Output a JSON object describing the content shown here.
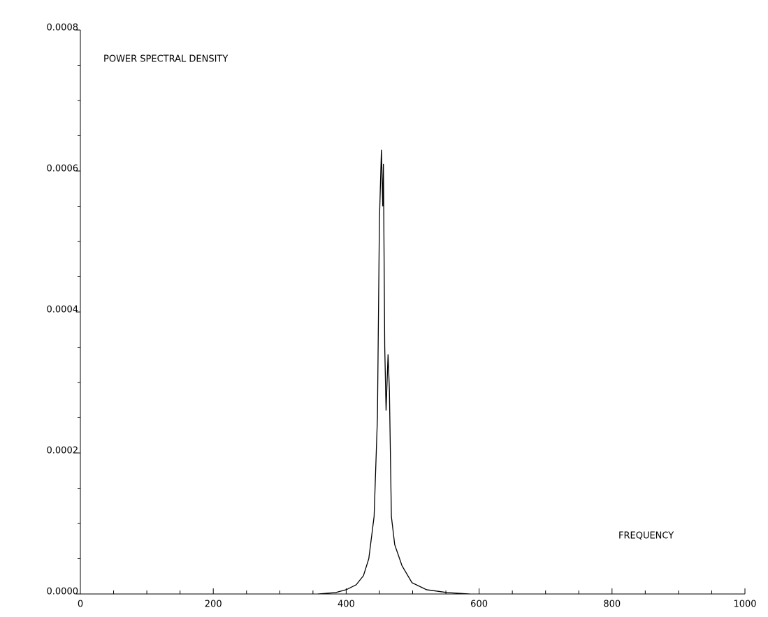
{
  "chart_data": {
    "type": "line",
    "annotations": [
      "POWER SPECTRAL DENSITY",
      "FREQUENCY"
    ],
    "x": [
      357.5,
      384,
      400,
      415,
      426,
      434,
      442,
      447,
      450,
      453,
      455,
      456,
      458,
      460,
      463,
      465,
      468,
      473,
      484,
      499,
      521,
      552,
      586
    ],
    "values": [
      0,
      2e-06,
      6e-06,
      1.3e-05,
      2.6e-05,
      5e-05,
      0.00011,
      0.00025,
      0.00053,
      0.00063,
      0.00055,
      0.00061,
      0.00035,
      0.00026,
      0.00034,
      0.00029,
      0.00011,
      7e-05,
      4e-05,
      1.6e-05,
      6e-06,
      2e-06,
      0
    ],
    "color": "#000000",
    "xlim": [
      0,
      1000
    ],
    "xticks": [
      0,
      200,
      400,
      600,
      800,
      1000
    ],
    "xminorticks": [
      50,
      100,
      150,
      250,
      300,
      350,
      450,
      500,
      550,
      650,
      700,
      750,
      850,
      900,
      950
    ],
    "ylim": [
      0,
      0.0008
    ],
    "yticks": [
      {
        "value": 0,
        "label": "0.0000"
      },
      {
        "value": 0.0002,
        "label": "0.0002"
      },
      {
        "value": 0.0004,
        "label": "0.0004"
      },
      {
        "value": 0.0006,
        "label": "0.0006"
      },
      {
        "value": 0.0008,
        "label": "0.0008"
      }
    ],
    "yminorticks": [
      5e-05,
      0.0001,
      0.00015,
      0.00025,
      0.0003,
      0.00035,
      0.00045,
      0.0005,
      0.00055,
      0.00065,
      0.0007,
      0.00075
    ]
  }
}
